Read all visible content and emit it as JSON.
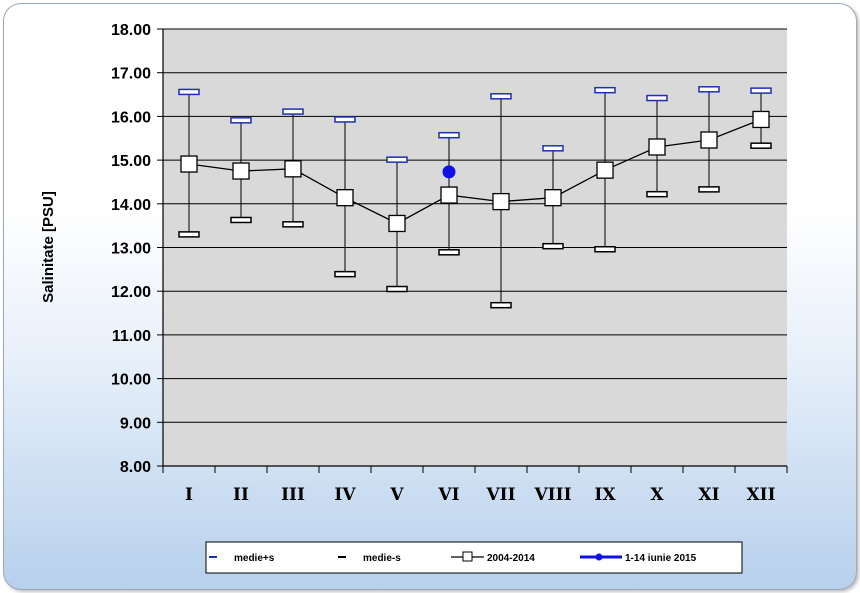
{
  "chart_data": {
    "type": "line",
    "ylabel": "Salinitate [PSU]",
    "xlabel": "",
    "ylim": [
      8,
      18
    ],
    "y_ticks": [
      "8.00",
      "9.00",
      "10.00",
      "11.00",
      "12.00",
      "13.00",
      "14.00",
      "15.00",
      "16.00",
      "17.00",
      "18.00"
    ],
    "categories": [
      "I",
      "II",
      "III",
      "IV",
      "V",
      "VI",
      "VII",
      "VIII",
      "IX",
      "X",
      "XI",
      "XII"
    ],
    "grid": "horizontal",
    "legend_position": "bottom",
    "series": [
      {
        "name": "medie+s",
        "values": [
          16.56,
          15.91,
          16.11,
          15.93,
          15.01,
          15.57,
          16.46,
          15.27,
          16.6,
          16.42,
          16.62,
          16.59
        ]
      },
      {
        "name": "medie-s",
        "values": [
          13.3,
          13.63,
          13.53,
          12.39,
          12.05,
          12.89,
          11.68,
          13.03,
          12.96,
          14.22,
          14.33,
          15.33
        ]
      },
      {
        "name": "2004-2014",
        "values": [
          14.91,
          14.75,
          14.8,
          14.14,
          13.55,
          14.2,
          14.05,
          14.14,
          14.77,
          15.3,
          15.46,
          15.93
        ]
      },
      {
        "name": "1-14 iunie 2015",
        "points": [
          {
            "x": "VI",
            "y": 14.73
          }
        ]
      }
    ]
  },
  "colors": {
    "plot_background": "#d9d9d9",
    "upper_marker": "#1f2fb0",
    "lower_marker": "#000000",
    "series_line": "#000000",
    "highlight_point": "#1010e6"
  }
}
